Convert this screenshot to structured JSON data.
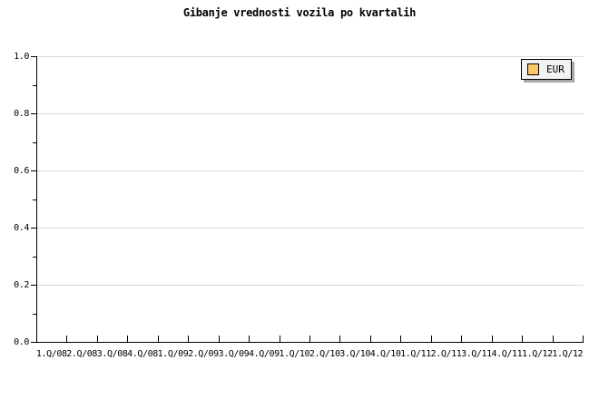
{
  "title": "Gibanje vrednosti vozila po kvartalih",
  "legend": {
    "position": "top-right",
    "items": [
      {
        "label": "EUR",
        "swatch_color": "#fbc96b"
      }
    ]
  },
  "chart_data": {
    "type": "line",
    "title": "Gibanje vrednosti vozila po kvartalih",
    "xlabel": "",
    "ylabel": "",
    "categories": [
      "1.Q/08",
      "2.Q/08",
      "3.Q/08",
      "4.Q/08",
      "1.Q/09",
      "2.Q/09",
      "3.Q/09",
      "4.Q/09",
      "1.Q/10",
      "2.Q/10",
      "3.Q/10",
      "4.Q/10",
      "1.Q/11",
      "2.Q/11",
      "3.Q/11",
      "4.Q/11",
      "1.Q/12",
      "1.Q/12"
    ],
    "series": [
      {
        "name": "EUR",
        "color": "#fbc96b",
        "values": []
      }
    ],
    "plot_empty": true,
    "ylim": [
      0.0,
      1.0
    ],
    "y_major_ticks": [
      0.0,
      0.2,
      0.4,
      0.6,
      0.8,
      1.0
    ],
    "y_major_tick_labels": [
      "0.0",
      "0.2",
      "0.4",
      "0.6",
      "0.8",
      "1.0"
    ],
    "y_minor_ticks": [
      0.1,
      0.3,
      0.5,
      0.7,
      0.9
    ],
    "grid": {
      "horizontal": true,
      "vertical": false
    },
    "legend_position": "top-right"
  },
  "colors": {
    "background": "#ffffff",
    "text": "#000000",
    "axis": "#000000",
    "gridline": "#d9d9d9",
    "legend_background": "#f2f2f2",
    "legend_shadow": "#a9a9a9",
    "series_eur": "#fbc96b"
  }
}
